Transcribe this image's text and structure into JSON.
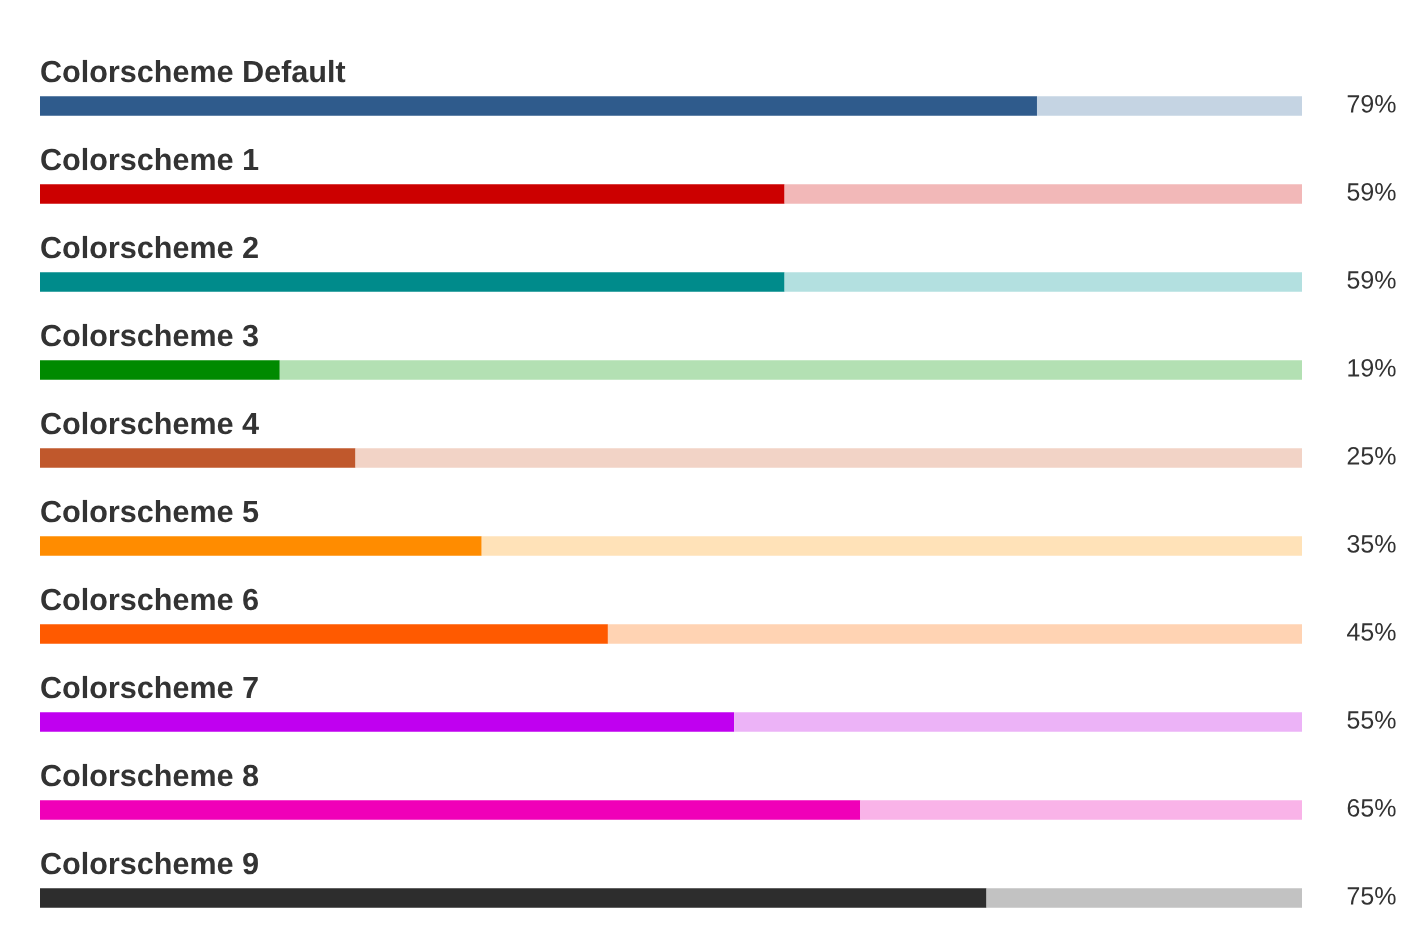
{
  "chart_data": {
    "type": "bar",
    "orientation": "horizontal",
    "stacked": true,
    "legend": false,
    "categories": [
      "Colorscheme Default",
      "Colorscheme 1",
      "Colorscheme 2",
      "Colorscheme 3",
      "Colorscheme 4",
      "Colorscheme 5",
      "Colorscheme 6",
      "Colorscheme 7",
      "Colorscheme 8",
      "Colorscheme 9"
    ],
    "series": [
      {
        "values": [
          79,
          59,
          59,
          19,
          25,
          35,
          45,
          55,
          65,
          75
        ],
        "value_labels": [
          "79%",
          "59%",
          "59%",
          "19%",
          "25%",
          "35%",
          "45%",
          "55%",
          "65%",
          "75%"
        ],
        "colors": [
          "#2f5b8c",
          "#cc0000",
          "#008b8b",
          "#008a00",
          "#c0582c",
          "#ff8c00",
          "#ff5a00",
          "#c000f0",
          "#f000b8",
          "#2d2d2d"
        ]
      },
      {
        "values": [
          21,
          41,
          41,
          81,
          75,
          65,
          55,
          45,
          35,
          25
        ],
        "colors": [
          "#c5d4e3",
          "#f2b8b8",
          "#b3e0e0",
          "#b3e0b3",
          "#f2d3c6",
          "#ffe2b8",
          "#ffd3b3",
          "#ecb3f7",
          "#f9b3e8",
          "#c2c2c2"
        ]
      }
    ]
  }
}
